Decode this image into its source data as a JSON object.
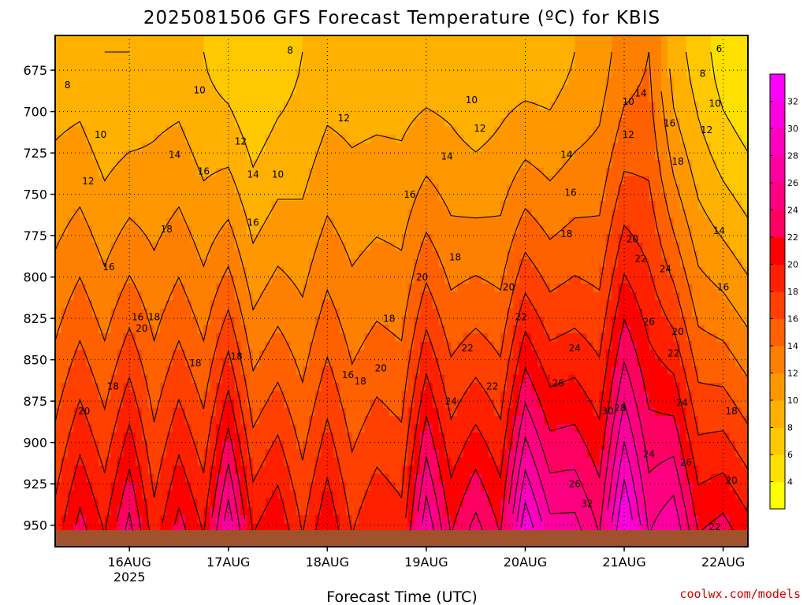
{
  "chart_data": {
    "type": "heatmap",
    "title": "2025081506 GFS Forecast Temperature (ºC) for KBIS",
    "xlabel": "Forecast Time (UTC)",
    "credit": "coolwx.com/models",
    "y_ticks": [
      "675",
      "700",
      "725",
      "750",
      "775",
      "800",
      "825",
      "850",
      "875",
      "900",
      "925",
      "950"
    ],
    "y_tick_values": [
      675,
      700,
      725,
      750,
      775,
      800,
      825,
      850,
      875,
      900,
      925,
      950
    ],
    "ylim": [
      654,
      963
    ],
    "x_ticks": [
      "16AUG",
      "17AUG",
      "18AUG",
      "19AUG",
      "20AUG",
      "21AUG",
      "22AUG"
    ],
    "x_year_label": "2025",
    "xlim_hours": [
      6,
      174
    ],
    "colorbar": {
      "levels": [
        2,
        4,
        6,
        8,
        10,
        12,
        14,
        16,
        18,
        20,
        22,
        24,
        26,
        28,
        30,
        32,
        34
      ],
      "labels": [
        "4",
        "6",
        "8",
        "10",
        "12",
        "14",
        "16",
        "18",
        "20",
        "22",
        "24",
        "26",
        "28",
        "30",
        "32"
      ],
      "colors": [
        "#ffff00",
        "#ffe000",
        "#ffc800",
        "#ffb000",
        "#ff9800",
        "#ff8000",
        "#ff6000",
        "#ff4000",
        "#ff2000",
        "#ff0000",
        "#ff0060",
        "#ff0080",
        "#ff00a0",
        "#ff00c0",
        "#ff00e0",
        "#ff00ff"
      ]
    },
    "ground_color": "#a0522d",
    "columns": [
      {
        "h": 6,
        "t675": 9,
        "t950": 19
      },
      {
        "h": 12,
        "t675": 9,
        "t950": 23
      },
      {
        "h": 18,
        "t675": 8,
        "t950": 20
      },
      {
        "h": 24,
        "t675": 8,
        "t950": 25
      },
      {
        "h": 30,
        "t675": 9,
        "t950": 19
      },
      {
        "h": 36,
        "t675": 9,
        "t950": 23
      },
      {
        "h": 42,
        "t675": 8,
        "t950": 20
      },
      {
        "h": 48,
        "t675": 7,
        "t950": 28
      },
      {
        "h": 54,
        "t675": 6,
        "t950": 20
      },
      {
        "h": 60,
        "t675": 7,
        "t950": 22
      },
      {
        "h": 66,
        "t675": 8,
        "t950": 18
      },
      {
        "h": 72,
        "t675": 9,
        "t950": 22
      },
      {
        "h": 78,
        "t675": 9,
        "t950": 18
      },
      {
        "h": 84,
        "t675": 9,
        "t950": 20
      },
      {
        "h": 90,
        "t675": 9,
        "t950": 19
      },
      {
        "h": 96,
        "t675": 9,
        "t950": 28
      },
      {
        "h": 102,
        "t675": 9,
        "t950": 22
      },
      {
        "h": 108,
        "t675": 8,
        "t950": 25
      },
      {
        "h": 114,
        "t675": 9,
        "t950": 22
      },
      {
        "h": 120,
        "t675": 9,
        "t950": 32
      },
      {
        "h": 126,
        "t675": 9,
        "t950": 27
      },
      {
        "h": 132,
        "t675": 10,
        "t950": 27
      },
      {
        "h": 138,
        "t675": 11,
        "t950": 24
      },
      {
        "h": 144,
        "t675": 13,
        "t950": 33
      },
      {
        "h": 150,
        "t675": 14,
        "t950": 26
      },
      {
        "h": 156,
        "t675": 9,
        "t950": 28
      },
      {
        "h": 162,
        "t675": 7,
        "t950": 22
      },
      {
        "h": 168,
        "t675": 5,
        "t950": 23
      },
      {
        "h": 174,
        "t675": 4,
        "t950": 21
      }
    ],
    "contour_labels": [
      {
        "text": "8",
        "h": 9,
        "p": 686
      },
      {
        "text": "10",
        "h": 17,
        "p": 716
      },
      {
        "text": "12",
        "h": 14,
        "p": 744
      },
      {
        "text": "16",
        "h": 19,
        "p": 796
      },
      {
        "text": "16",
        "h": 26,
        "p": 826
      },
      {
        "text": "18",
        "h": 33,
        "p": 773
      },
      {
        "text": "18",
        "h": 30,
        "p": 826
      },
      {
        "text": "20",
        "h": 27,
        "p": 833
      },
      {
        "text": "20",
        "h": 13,
        "p": 883
      },
      {
        "text": "18",
        "h": 20,
        "p": 868
      },
      {
        "text": "14",
        "h": 35,
        "p": 728
      },
      {
        "text": "16",
        "h": 42,
        "p": 738
      },
      {
        "text": "10",
        "h": 41,
        "p": 689
      },
      {
        "text": "12",
        "h": 51,
        "p": 720
      },
      {
        "text": "14",
        "h": 54,
        "p": 740
      },
      {
        "text": "16",
        "h": 54,
        "p": 769
      },
      {
        "text": "18",
        "h": 40,
        "p": 854
      },
      {
        "text": "18",
        "h": 50,
        "p": 850
      },
      {
        "text": "10",
        "h": 60,
        "p": 740
      },
      {
        "text": "8",
        "h": 63,
        "p": 665
      },
      {
        "text": "12",
        "h": 76,
        "p": 706
      },
      {
        "text": "16",
        "h": 77,
        "p": 861
      },
      {
        "text": "18",
        "h": 80,
        "p": 865
      },
      {
        "text": "18",
        "h": 87,
        "p": 827
      },
      {
        "text": "20",
        "h": 85,
        "p": 857
      },
      {
        "text": "16",
        "h": 92,
        "p": 752
      },
      {
        "text": "14",
        "h": 101,
        "p": 729
      },
      {
        "text": "12",
        "h": 109,
        "p": 712
      },
      {
        "text": "10",
        "h": 107,
        "p": 695
      },
      {
        "text": "20",
        "h": 95,
        "p": 802
      },
      {
        "text": "18",
        "h": 103,
        "p": 790
      },
      {
        "text": "22",
        "h": 106,
        "p": 845
      },
      {
        "text": "22",
        "h": 112,
        "p": 868
      },
      {
        "text": "24",
        "h": 102,
        "p": 877
      },
      {
        "text": "20",
        "h": 116,
        "p": 808
      },
      {
        "text": "22",
        "h": 119,
        "p": 826
      },
      {
        "text": "24",
        "h": 132,
        "p": 845
      },
      {
        "text": "26",
        "h": 128,
        "p": 866
      },
      {
        "text": "26",
        "h": 132,
        "p": 927
      },
      {
        "text": "14",
        "h": 130,
        "p": 728
      },
      {
        "text": "16",
        "h": 131,
        "p": 751
      },
      {
        "text": "18",
        "h": 130,
        "p": 776
      },
      {
        "text": "20",
        "h": 146,
        "p": 779
      },
      {
        "text": "22",
        "h": 148,
        "p": 791
      },
      {
        "text": "24",
        "h": 154,
        "p": 797
      },
      {
        "text": "26",
        "h": 150,
        "p": 829
      },
      {
        "text": "28",
        "h": 143,
        "p": 881
      },
      {
        "text": "30",
        "h": 140,
        "p": 883
      },
      {
        "text": "32",
        "h": 135,
        "p": 939
      },
      {
        "text": "24",
        "h": 150,
        "p": 909
      },
      {
        "text": "10",
        "h": 145,
        "p": 696
      },
      {
        "text": "12",
        "h": 145,
        "p": 716
      },
      {
        "text": "14",
        "h": 148,
        "p": 691
      },
      {
        "text": "16",
        "h": 155,
        "p": 709
      },
      {
        "text": "18",
        "h": 157,
        "p": 732
      },
      {
        "text": "20",
        "h": 157,
        "p": 835
      },
      {
        "text": "22",
        "h": 156,
        "p": 848
      },
      {
        "text": "24",
        "h": 158,
        "p": 878
      },
      {
        "text": "26",
        "h": 159,
        "p": 914
      },
      {
        "text": "22",
        "h": 166,
        "p": 953
      },
      {
        "text": "20",
        "h": 170,
        "p": 925
      },
      {
        "text": "18",
        "h": 170,
        "p": 883
      },
      {
        "text": "16",
        "h": 168,
        "p": 808
      },
      {
        "text": "14",
        "h": 167,
        "p": 774
      },
      {
        "text": "12",
        "h": 164,
        "p": 713
      },
      {
        "text": "10",
        "h": 166,
        "p": 697
      },
      {
        "text": "8",
        "h": 163,
        "p": 679
      },
      {
        "text": "6",
        "h": 167,
        "p": 664
      }
    ]
  }
}
